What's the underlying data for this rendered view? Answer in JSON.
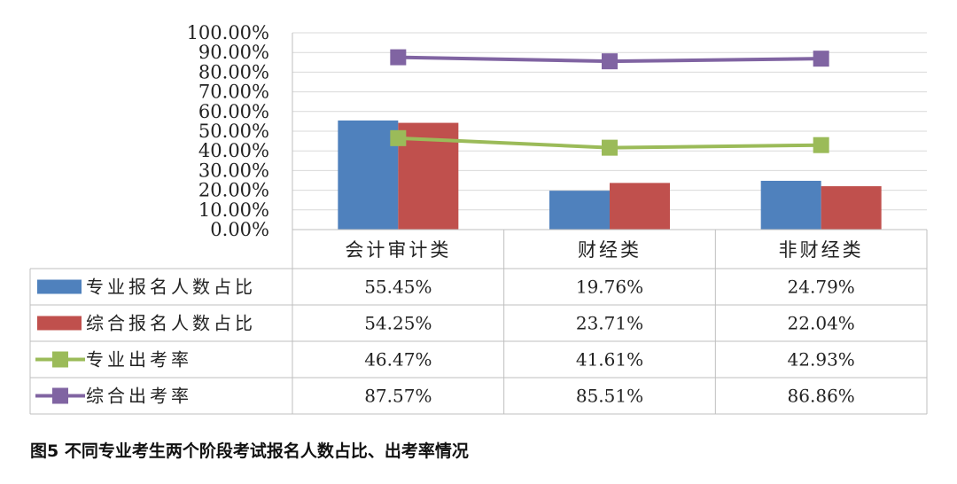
{
  "caption": "图5 不同专业考生两个阶段考试报名人数占比、出考率情况",
  "chart_data": {
    "type": "bar",
    "categories": [
      "会计审计类",
      "财经类",
      "非财经类"
    ],
    "ylim": [
      0,
      100
    ],
    "yticks": [
      "0.00%",
      "10.00%",
      "20.00%",
      "30.00%",
      "40.00%",
      "50.00%",
      "60.00%",
      "70.00%",
      "80.00%",
      "90.00%",
      "100.00%"
    ],
    "series": [
      {
        "name": "专业报名人数占比",
        "type": "bar",
        "color": "#4F81BD",
        "values": [
          55.45,
          19.76,
          24.79
        ],
        "labels": [
          "55.45%",
          "19.76%",
          "24.79%"
        ]
      },
      {
        "name": "综合报名人数占比",
        "type": "bar",
        "color": "#C0504D",
        "values": [
          54.25,
          23.71,
          22.04
        ],
        "labels": [
          "54.25%",
          "23.71%",
          "22.04%"
        ]
      },
      {
        "name": "专业出考率",
        "type": "line",
        "color": "#9BBB59",
        "values": [
          46.47,
          41.61,
          42.93
        ],
        "labels": [
          "46.47%",
          "41.61%",
          "42.93%"
        ]
      },
      {
        "name": "综合出考率",
        "type": "line",
        "color": "#8064A2",
        "values": [
          87.57,
          85.51,
          86.86
        ],
        "labels": [
          "87.57%",
          "85.51%",
          "86.86%"
        ]
      }
    ],
    "grid": true,
    "legend": "data-table"
  }
}
